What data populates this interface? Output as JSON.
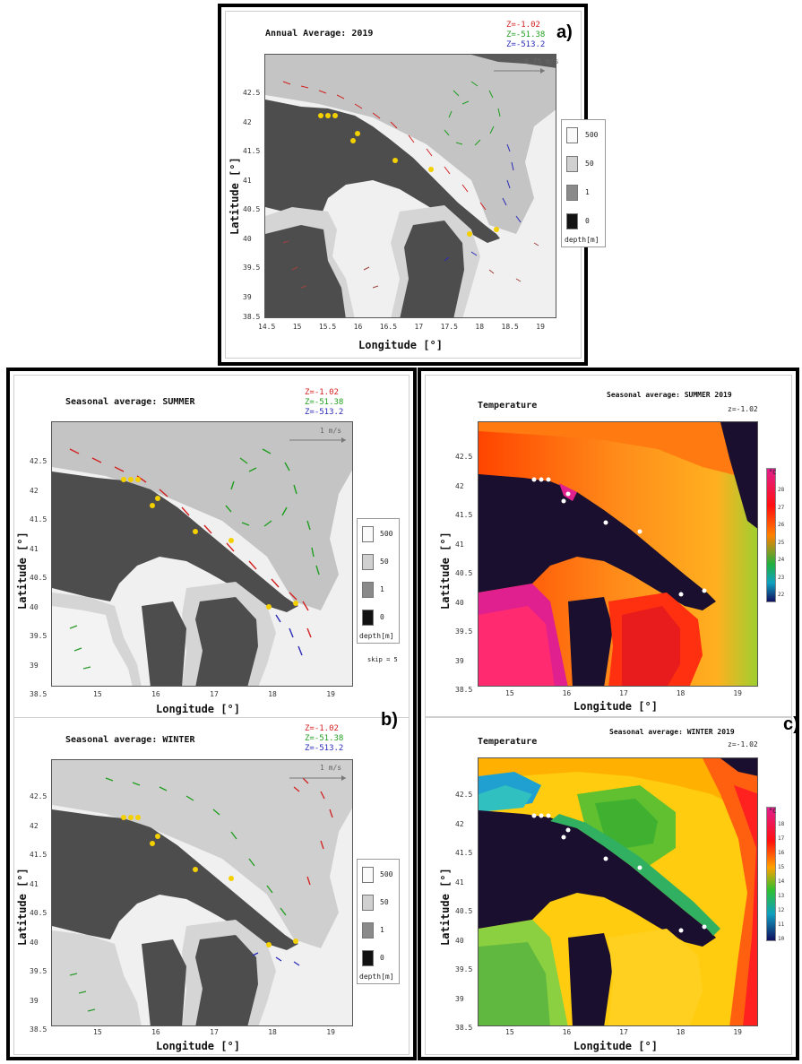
{
  "panel_a": {
    "title": "Annual Average: 2019",
    "letter": "a)",
    "z_labels": [
      "Z=-1.02",
      "Z=-51.38",
      "Z=-513.2"
    ],
    "ref_vector": "0.75 m/s",
    "ylabel": "Latitude [°]",
    "xlabel": "Longitude [°]",
    "x_ticks": [
      "14.5",
      "15",
      "15.5",
      "16",
      "16.5",
      "17",
      "17.5",
      "18",
      "18.5",
      "19"
    ],
    "y_ticks": [
      "42.5",
      "42",
      "41.5",
      "41",
      "40.5",
      "40",
      "39.5",
      "39",
      "38.5"
    ],
    "legend": [
      "500",
      "50",
      "1",
      "0"
    ],
    "legend_title": "depth[m]"
  },
  "panel_b_summer": {
    "title": "Seasonal average: SUMMER",
    "z_labels": [
      "Z=-1.02",
      "Z=-51.38",
      "Z=-513.2"
    ],
    "ref_vector": "1 m/s",
    "ylabel": "Latitude [°]",
    "xlabel": "Longitude [°]",
    "x_ticks": [
      "15",
      "16",
      "17",
      "18",
      "19"
    ],
    "y_ticks": [
      "42.5",
      "42",
      "41.5",
      "41",
      "40.5",
      "40",
      "39.5",
      "39",
      "38.5"
    ],
    "legend": [
      "500",
      "50",
      "1",
      "0"
    ],
    "legend_title": "depth[m]",
    "skip": "skip = 5"
  },
  "panel_b_winter": {
    "title": "Seasonal average: WINTER",
    "letter": "b)",
    "z_labels": [
      "Z=-1.02",
      "Z=-51.38",
      "Z=-513.2"
    ],
    "ref_vector": "1 m/s",
    "ylabel": "Latitude [°]",
    "xlabel": "Longitude [°]",
    "x_ticks": [
      "15",
      "16",
      "17",
      "18",
      "19"
    ],
    "y_ticks": [
      "42.5",
      "42",
      "41.5",
      "41",
      "40.5",
      "40",
      "39.5",
      "39",
      "38.5"
    ],
    "legend": [
      "500",
      "50",
      "1",
      "0"
    ],
    "legend_title": "depth[m]"
  },
  "panel_c_summer": {
    "title": "Temperature",
    "subtitle": "Seasonal average: SUMMER 2019",
    "zlabel": "z=-1.02",
    "ylabel": "Latitude [°]",
    "xlabel": "Longitude [°]",
    "x_ticks": [
      "15",
      "16",
      "17",
      "18",
      "19"
    ],
    "y_ticks": [
      "42.5",
      "42",
      "41.5",
      "41",
      "40.5",
      "40",
      "39.5",
      "39",
      "38.5"
    ],
    "cbar_unit": "°C",
    "cbar_ticks": [
      "28",
      "27",
      "26",
      "25",
      "24",
      "23",
      "22"
    ]
  },
  "panel_c_winter": {
    "title": "Temperature",
    "subtitle": "Seasonal average: WINTER 2019",
    "zlabel": "z=-1.02",
    "letter": "c)",
    "ylabel": "Latitude [°]",
    "xlabel": "Longitude [°]",
    "x_ticks": [
      "15",
      "16",
      "17",
      "18",
      "19"
    ],
    "y_ticks": [
      "42.5",
      "42",
      "41.5",
      "41",
      "40.5",
      "40",
      "39.5",
      "39",
      "38.5"
    ],
    "cbar_unit": "°C",
    "cbar_ticks": [
      "18",
      "17",
      "16",
      "15",
      "14",
      "13",
      "12",
      "11",
      "10"
    ]
  },
  "colors": {
    "land": "#4d4d4d",
    "shelf": "#bfbfbf",
    "deep": "#f2f2f2",
    "z1": "#d32020",
    "z2": "#1f9e1f",
    "z3": "#2a2ab8",
    "station": "#f5d000"
  }
}
